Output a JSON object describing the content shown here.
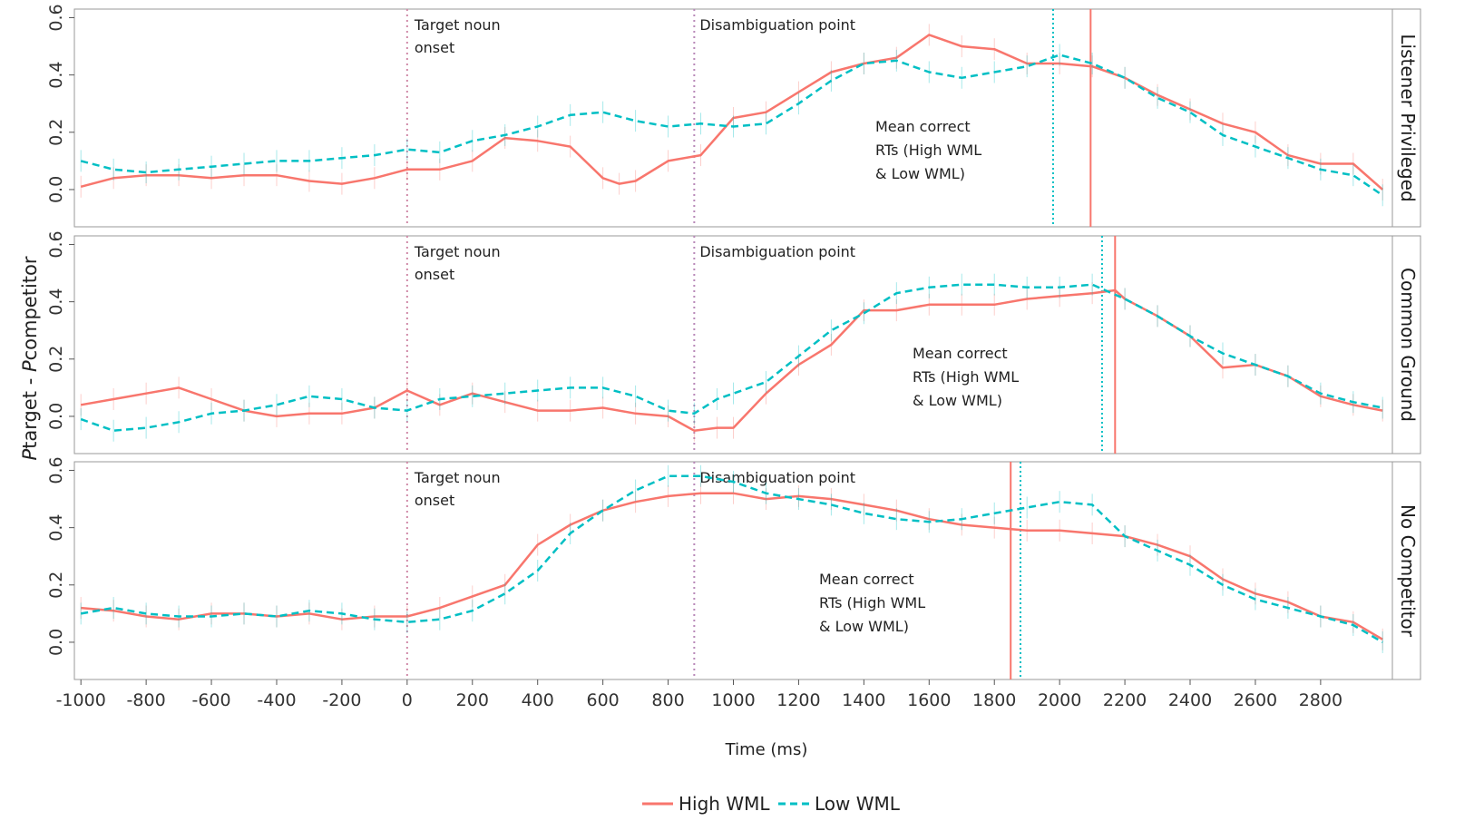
{
  "chart_data": {
    "type": "line",
    "xlabel": "Time (ms)",
    "ylabel": "Ptarget - Pcompetitor",
    "ylabel_parts": {
      "p1": "P",
      "s1": "target - ",
      "p2": "P",
      "s2": "competitor"
    },
    "xlim": [
      -1020,
      3020
    ],
    "ylim": [
      -0.13,
      0.63
    ],
    "xticks": [
      -1000,
      -800,
      -600,
      -400,
      -200,
      0,
      200,
      400,
      600,
      800,
      1000,
      1200,
      1400,
      1600,
      1800,
      2000,
      2200,
      2400,
      2600,
      2800
    ],
    "yticks": [
      0.0,
      0.2,
      0.4,
      0.6
    ],
    "ytick_labels": [
      "0.0",
      "0.2",
      "0.4",
      "0.6"
    ],
    "legend": {
      "position": "bottom",
      "entries": [
        {
          "name": "High WML",
          "color": "#F8766D",
          "style": "solid"
        },
        {
          "name": "Low WML",
          "color": "#00BFC4",
          "style": "dashed"
        }
      ]
    },
    "annotations": {
      "target_noun": [
        "Target noun",
        "onset"
      ],
      "disambiguation": "Disambiguation point",
      "mean_rt": [
        "Mean correct",
        "RTs (High WML",
        "& Low WML)"
      ]
    },
    "panels": [
      {
        "facet": "Listener Privileged",
        "target_noun_onset": 0,
        "disambiguation_point": 880,
        "mean_rt_high": 2095,
        "mean_rt_low": 1980,
        "series": [
          {
            "name": "High WML",
            "x": [
              -1000,
              -900,
              -800,
              -700,
              -600,
              -500,
              -400,
              -300,
              -200,
              -100,
              0,
              100,
              200,
              300,
              400,
              500,
              600,
              650,
              700,
              800,
              900,
              1000,
              1100,
              1200,
              1300,
              1400,
              1500,
              1600,
              1700,
              1800,
              1900,
              2000,
              2100,
              2200,
              2300,
              2400,
              2500,
              2600,
              2700,
              2800,
              2900,
              2990
            ],
            "y": [
              0.01,
              0.04,
              0.05,
              0.05,
              0.04,
              0.05,
              0.05,
              0.03,
              0.02,
              0.04,
              0.07,
              0.07,
              0.1,
              0.18,
              0.17,
              0.15,
              0.04,
              0.02,
              0.03,
              0.1,
              0.12,
              0.25,
              0.27,
              0.34,
              0.41,
              0.44,
              0.46,
              0.54,
              0.5,
              0.49,
              0.44,
              0.44,
              0.43,
              0.39,
              0.33,
              0.28,
              0.23,
              0.2,
              0.12,
              0.09,
              0.09,
              0.0
            ]
          },
          {
            "name": "Low WML",
            "x": [
              -1000,
              -900,
              -800,
              -700,
              -600,
              -500,
              -400,
              -300,
              -200,
              -100,
              0,
              100,
              200,
              300,
              400,
              500,
              600,
              700,
              800,
              900,
              1000,
              1100,
              1200,
              1300,
              1400,
              1500,
              1600,
              1700,
              1800,
              1900,
              2000,
              2100,
              2200,
              2300,
              2400,
              2500,
              2600,
              2700,
              2800,
              2900,
              2990
            ],
            "y": [
              0.1,
              0.07,
              0.06,
              0.07,
              0.08,
              0.09,
              0.1,
              0.1,
              0.11,
              0.12,
              0.14,
              0.13,
              0.17,
              0.19,
              0.22,
              0.26,
              0.27,
              0.24,
              0.22,
              0.23,
              0.22,
              0.23,
              0.3,
              0.38,
              0.44,
              0.45,
              0.41,
              0.39,
              0.41,
              0.43,
              0.47,
              0.44,
              0.39,
              0.32,
              0.27,
              0.19,
              0.15,
              0.11,
              0.07,
              0.05,
              -0.02
            ]
          }
        ]
      },
      {
        "facet": "Common Ground",
        "target_noun_onset": 0,
        "disambiguation_point": 880,
        "mean_rt_high": 2170,
        "mean_rt_low": 2130,
        "series": [
          {
            "name": "High WML",
            "x": [
              -1000,
              -900,
              -800,
              -700,
              -600,
              -500,
              -400,
              -300,
              -200,
              -100,
              0,
              100,
              200,
              300,
              400,
              500,
              600,
              700,
              800,
              880,
              950,
              1000,
              1100,
              1200,
              1300,
              1400,
              1500,
              1600,
              1700,
              1800,
              1900,
              2000,
              2100,
              2170,
              2200,
              2300,
              2400,
              2500,
              2600,
              2700,
              2800,
              2900,
              2990
            ],
            "y": [
              0.04,
              0.06,
              0.08,
              0.1,
              0.06,
              0.02,
              0.0,
              0.01,
              0.01,
              0.03,
              0.09,
              0.04,
              0.08,
              0.05,
              0.02,
              0.02,
              0.03,
              0.01,
              0.0,
              -0.05,
              -0.04,
              -0.04,
              0.08,
              0.18,
              0.25,
              0.37,
              0.37,
              0.39,
              0.39,
              0.39,
              0.41,
              0.42,
              0.43,
              0.44,
              0.41,
              0.35,
              0.28,
              0.17,
              0.18,
              0.14,
              0.07,
              0.04,
              0.02
            ]
          },
          {
            "name": "Low WML",
            "x": [
              -1000,
              -900,
              -800,
              -700,
              -600,
              -500,
              -400,
              -300,
              -200,
              -100,
              0,
              100,
              200,
              300,
              400,
              500,
              600,
              700,
              800,
              880,
              950,
              1000,
              1100,
              1200,
              1300,
              1400,
              1500,
              1600,
              1700,
              1800,
              1900,
              2000,
              2100,
              2200,
              2300,
              2400,
              2500,
              2600,
              2700,
              2800,
              2900,
              2990
            ],
            "y": [
              -0.01,
              -0.05,
              -0.04,
              -0.02,
              0.01,
              0.02,
              0.04,
              0.07,
              0.06,
              0.03,
              0.02,
              0.06,
              0.07,
              0.08,
              0.09,
              0.1,
              0.1,
              0.07,
              0.02,
              0.01,
              0.06,
              0.08,
              0.12,
              0.21,
              0.3,
              0.36,
              0.43,
              0.45,
              0.46,
              0.46,
              0.45,
              0.45,
              0.46,
              0.41,
              0.35,
              0.28,
              0.22,
              0.18,
              0.14,
              0.08,
              0.05,
              0.03
            ]
          }
        ]
      },
      {
        "facet": "No Competitor",
        "target_noun_onset": 0,
        "disambiguation_point": 880,
        "mean_rt_high": 1850,
        "mean_rt_low": 1880,
        "series": [
          {
            "name": "High WML",
            "x": [
              -1000,
              -900,
              -800,
              -700,
              -600,
              -500,
              -400,
              -300,
              -200,
              -100,
              0,
              100,
              200,
              300,
              400,
              500,
              600,
              700,
              800,
              900,
              1000,
              1100,
              1200,
              1300,
              1400,
              1500,
              1600,
              1700,
              1800,
              1900,
              2000,
              2100,
              2200,
              2300,
              2400,
              2500,
              2600,
              2700,
              2800,
              2900,
              2990
            ],
            "y": [
              0.12,
              0.11,
              0.09,
              0.08,
              0.1,
              0.1,
              0.09,
              0.1,
              0.08,
              0.09,
              0.09,
              0.12,
              0.16,
              0.2,
              0.34,
              0.41,
              0.46,
              0.49,
              0.51,
              0.52,
              0.52,
              0.5,
              0.51,
              0.5,
              0.48,
              0.46,
              0.43,
              0.41,
              0.4,
              0.39,
              0.39,
              0.38,
              0.37,
              0.34,
              0.3,
              0.22,
              0.17,
              0.14,
              0.09,
              0.07,
              0.01
            ]
          },
          {
            "name": "Low WML",
            "x": [
              -1000,
              -900,
              -800,
              -700,
              -600,
              -500,
              -400,
              -300,
              -200,
              -100,
              0,
              100,
              200,
              300,
              400,
              500,
              600,
              700,
              800,
              900,
              1000,
              1100,
              1200,
              1300,
              1400,
              1500,
              1600,
              1700,
              1800,
              1900,
              2000,
              2100,
              2200,
              2300,
              2400,
              2500,
              2600,
              2700,
              2800,
              2900,
              2990
            ],
            "y": [
              0.1,
              0.12,
              0.1,
              0.09,
              0.09,
              0.1,
              0.09,
              0.11,
              0.1,
              0.08,
              0.07,
              0.08,
              0.11,
              0.17,
              0.25,
              0.38,
              0.46,
              0.53,
              0.58,
              0.58,
              0.56,
              0.52,
              0.5,
              0.48,
              0.45,
              0.43,
              0.42,
              0.43,
              0.45,
              0.47,
              0.49,
              0.48,
              0.37,
              0.32,
              0.27,
              0.2,
              0.15,
              0.12,
              0.09,
              0.06,
              0.0
            ]
          }
        ]
      }
    ]
  }
}
